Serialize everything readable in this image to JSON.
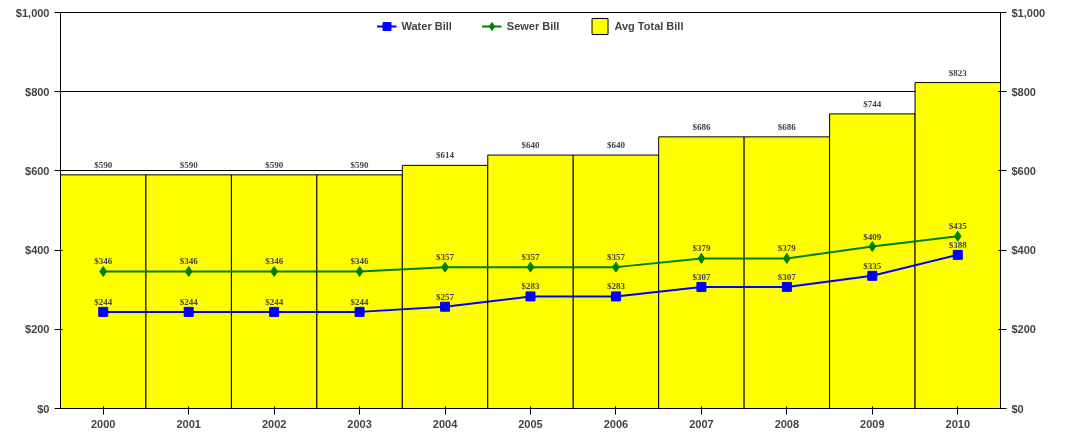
{
  "chart_data": {
    "type": "bar",
    "categories": [
      "2000",
      "2001",
      "2002",
      "2003",
      "2004",
      "2005",
      "2006",
      "2007",
      "2008",
      "2009",
      "2010"
    ],
    "series": [
      {
        "name": "Avg Total Bill",
        "color": "#ffff00",
        "values": [
          590,
          590,
          590,
          590,
          614,
          640,
          640,
          686,
          686,
          744,
          823
        ],
        "value_labels": [
          "$590",
          "$590",
          "$590",
          "$590",
          "$614",
          "$640",
          "$640",
          "$686",
          "$686",
          "$744",
          "$823"
        ]
      },
      {
        "name": "Water Bill",
        "type": "line",
        "color": "#0000ff",
        "marker": "square",
        "values": [
          244,
          244,
          244,
          244,
          257,
          283,
          283,
          307,
          307,
          335,
          388
        ],
        "value_labels": [
          "$244",
          "$244",
          "$244",
          "$244",
          "$257",
          "$283",
          "$283",
          "$307",
          "$307",
          "$335",
          "$388"
        ]
      },
      {
        "name": "Sewer Bill",
        "type": "line",
        "color": "#008000",
        "marker": "diamond",
        "values": [
          346,
          346,
          346,
          346,
          357,
          357,
          357,
          379,
          379,
          409,
          435
        ],
        "value_labels": [
          "$346",
          "$346",
          "$346",
          "$346",
          "$357",
          "$357",
          "$357",
          "$379",
          "$379",
          "$409",
          "$435"
        ]
      }
    ],
    "ylim": [
      0,
      1000
    ],
    "yticks": [
      {
        "value": 0,
        "label": "$0"
      },
      {
        "value": 200,
        "label": "$200"
      },
      {
        "value": 400,
        "label": "$400"
      },
      {
        "value": 600,
        "label": "$600"
      },
      {
        "value": 800,
        "label": "$800"
      },
      {
        "value": 1000,
        "label": "$1,000"
      }
    ],
    "y2lim": [
      0,
      1000
    ],
    "y2ticks": [
      {
        "value": 0,
        "label": "$0"
      },
      {
        "value": 200,
        "label": "$200"
      },
      {
        "value": 400,
        "label": "$400"
      },
      {
        "value": 600,
        "label": "$600"
      },
      {
        "value": 800,
        "label": "$800"
      },
      {
        "value": 1000,
        "label": "$1,000"
      }
    ],
    "grid": "y",
    "legend": "top"
  }
}
